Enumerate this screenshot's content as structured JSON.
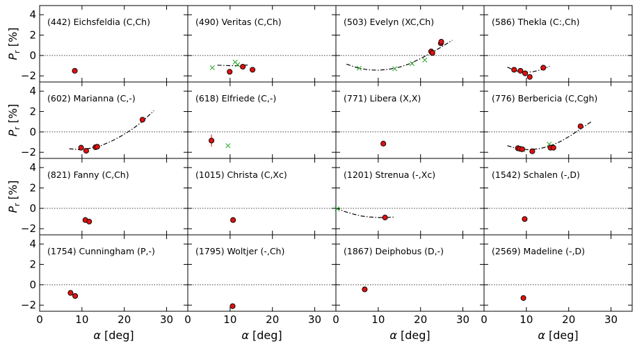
{
  "chart_data": {
    "type": "scatter",
    "layout": "4x4 grid of panels",
    "xlabel": "α [deg]",
    "ylabel": "P_r [%]",
    "xlim": [
      0,
      35
    ],
    "ylim": [
      -2.6,
      4.9
    ],
    "xticks": [
      0,
      10,
      20,
      30
    ],
    "yticks": [
      -2,
      0,
      2,
      4
    ],
    "reference_line": "P_r = 0 (dotted)",
    "colors": {
      "observed": "#dd1111",
      "literature": "#33aa33",
      "fit": "#000000"
    },
    "panels": [
      {
        "title": "(442) Eichsfeldia (C,Ch)",
        "red": [
          [
            8.3,
            -1.5
          ]
        ],
        "green": [],
        "fit": null
      },
      {
        "title": "(490) Veritas (C,Ch)",
        "red": [
          [
            9.9,
            -1.6
          ],
          [
            13.0,
            -1.1
          ],
          [
            15.3,
            -1.4
          ]
        ],
        "green": [
          [
            5.8,
            -1.2
          ],
          [
            11.2,
            -0.65
          ],
          [
            11.8,
            -0.9
          ]
        ],
        "fit": {
          "x": [
            7.0,
            8.5,
            10,
            11.5,
            13,
            14.5
          ],
          "y": [
            -0.95,
            -0.98,
            -1.0,
            -1.0,
            -0.97,
            -0.93
          ]
        }
      },
      {
        "title": "(503) Evelyn (XC,Ch)",
        "red": [
          [
            22.5,
            0.4
          ],
          [
            22.8,
            0.25
          ],
          [
            24.8,
            1.2
          ],
          [
            24.9,
            1.35
          ]
        ],
        "green": [
          [
            5.5,
            -1.25
          ],
          [
            13.9,
            -1.3
          ],
          [
            18.0,
            -0.8
          ],
          [
            21.0,
            -0.45
          ]
        ],
        "fit": {
          "x": [
            2.5,
            5,
            7.5,
            10,
            12.5,
            15,
            17.5,
            20,
            22.5,
            25,
            27.5
          ],
          "y": [
            -0.85,
            -1.2,
            -1.4,
            -1.45,
            -1.35,
            -1.15,
            -0.8,
            -0.3,
            0.25,
            0.85,
            1.5
          ]
        }
      },
      {
        "title": "(586) Thekla (C:,Ch)",
        "red": [
          [
            7.1,
            -1.4
          ],
          [
            8.6,
            -1.5
          ],
          [
            9.7,
            -1.75
          ],
          [
            10.8,
            -2.1
          ],
          [
            14.0,
            -1.2
          ]
        ],
        "green": [],
        "fit": {
          "x": [
            5.5,
            7.5,
            9.5,
            11.5,
            13.5,
            15.5
          ],
          "y": [
            -1.15,
            -1.5,
            -1.65,
            -1.6,
            -1.4,
            -1.05
          ]
        }
      },
      {
        "title": "(602) Marianna (C,-)",
        "red": [
          [
            9.8,
            -1.55
          ],
          [
            11.0,
            -1.85
          ],
          [
            13.2,
            -1.5
          ],
          [
            13.6,
            -1.45
          ],
          [
            24.3,
            1.2
          ]
        ],
        "green": [],
        "fit": {
          "x": [
            7,
            9.5,
            12,
            14.5,
            17,
            19.5,
            22,
            24.5,
            27
          ],
          "y": [
            -1.65,
            -1.75,
            -1.6,
            -1.35,
            -0.9,
            -0.35,
            0.3,
            1.1,
            2.1
          ]
        }
      },
      {
        "title": "(618) Elfriede (C,-)",
        "red": [
          [
            5.6,
            -0.85
          ]
        ],
        "errors": [
          [
            5.6,
            -0.85,
            0.6
          ]
        ],
        "green": [
          [
            9.5,
            -1.35
          ]
        ],
        "fit": null
      },
      {
        "title": "(771) Libera (X,X)",
        "red": [
          [
            11.2,
            -1.15
          ]
        ],
        "green": [],
        "fit": null
      },
      {
        "title": "(776) Berbericia (C,Cgh)",
        "red": [
          [
            8.0,
            -1.6
          ],
          [
            8.4,
            -1.65
          ],
          [
            9.0,
            -1.7
          ],
          [
            11.4,
            -1.9
          ],
          [
            15.7,
            -1.55
          ],
          [
            16.4,
            -1.55
          ],
          [
            22.8,
            0.55
          ]
        ],
        "green": [
          [
            9.2,
            -1.75
          ],
          [
            15.4,
            -1.2
          ]
        ],
        "fit": {
          "x": [
            5.5,
            8,
            10.5,
            13,
            15.5,
            18,
            20.5,
            23,
            25.5
          ],
          "y": [
            -1.35,
            -1.65,
            -1.75,
            -1.65,
            -1.4,
            -0.95,
            -0.35,
            0.35,
            1.05
          ]
        }
      },
      {
        "title": "(821) Fanny (C,Ch)",
        "red": [
          [
            10.8,
            -1.15
          ],
          [
            11.7,
            -1.3
          ]
        ],
        "green": [],
        "fit": null
      },
      {
        "title": "(1015) Christa (C,Xc)",
        "red": [
          [
            10.7,
            -1.15
          ]
        ],
        "green": [],
        "fit": null
      },
      {
        "title": "(1201) Strenua (-,Xc)",
        "red": [
          [
            11.6,
            -0.9
          ]
        ],
        "green": [
          [
            0.3,
            -0.05
          ]
        ],
        "fit": {
          "x": [
            0,
            2,
            4,
            6,
            8,
            10,
            12,
            14
          ],
          "y": [
            0.05,
            -0.3,
            -0.55,
            -0.75,
            -0.85,
            -0.9,
            -0.9,
            -0.85
          ]
        }
      },
      {
        "title": "(1542) Schalen (-,D)",
        "red": [
          [
            9.6,
            -1.05
          ]
        ],
        "green": [],
        "fit": null
      },
      {
        "title": "(1754) Cunningham (P,-)",
        "red": [
          [
            7.3,
            -0.8
          ],
          [
            8.4,
            -1.1
          ]
        ],
        "green": [],
        "fit": null
      },
      {
        "title": "(1795) Woltjer (-,Ch)",
        "red": [
          [
            10.6,
            -2.1
          ]
        ],
        "green": [],
        "fit": null
      },
      {
        "title": "(1867) Deiphobus (D,-)",
        "red": [
          [
            6.8,
            -0.45
          ]
        ],
        "green": [],
        "fit": null
      },
      {
        "title": "(2569) Madeline (-,D)",
        "red": [
          [
            9.3,
            -1.3
          ]
        ],
        "green": [],
        "fit": null
      }
    ]
  }
}
